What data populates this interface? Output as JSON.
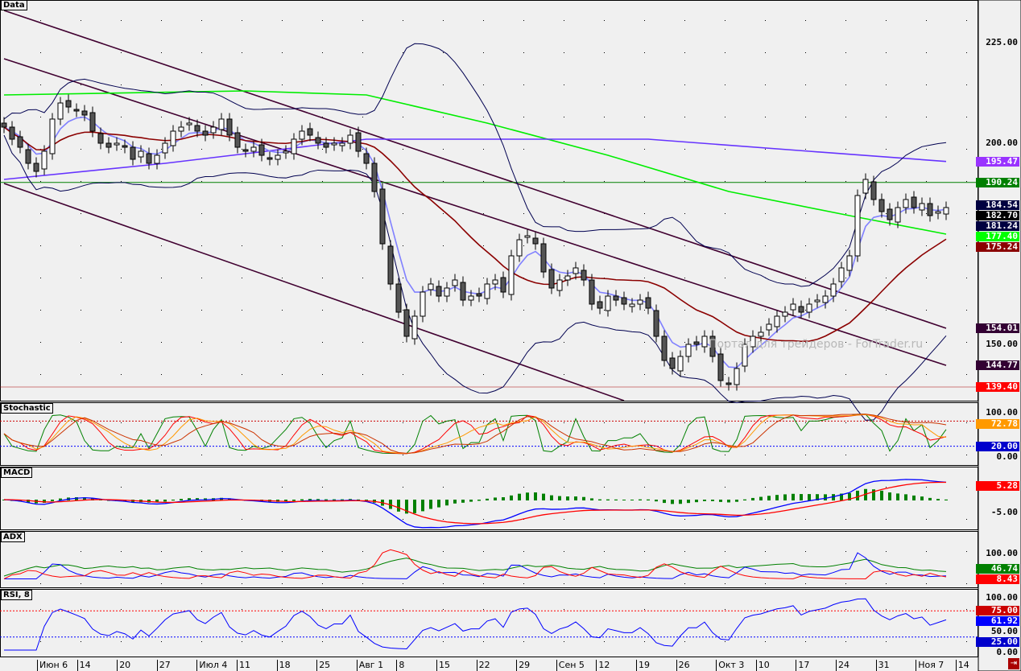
{
  "panels": {
    "main": "Data",
    "stoch": "Stochastic",
    "macd": "MACD",
    "adx": "ADX",
    "rsi": "RSI, 8"
  },
  "watermark": "Портал для трейдеров - ForTrader.ru",
  "chart_data": {
    "type": "candlestick",
    "x_ticks": [
      "Июн 6",
      "14",
      "20",
      "27",
      "Июл 4",
      "11",
      "18",
      "25",
      "Авг 1",
      "8",
      "15",
      "22",
      "29",
      "Сен 5",
      "12",
      "19",
      "26",
      "Окт 3",
      "10",
      "17",
      "24",
      "31",
      "Ноя 7",
      "14"
    ],
    "close": [
      204,
      201,
      199,
      195,
      193,
      198,
      206,
      210,
      209,
      208,
      207,
      203,
      200,
      199,
      200,
      199,
      196,
      198,
      195,
      197,
      200,
      203,
      204,
      205,
      203,
      202,
      204,
      206,
      202,
      199,
      198,
      199,
      197,
      196,
      197,
      198,
      201,
      203,
      202,
      200,
      199,
      200,
      200,
      202,
      198,
      195,
      188,
      175,
      165,
      158,
      152,
      157,
      163,
      165,
      162,
      164,
      166,
      161,
      162,
      162,
      165,
      166,
      163,
      172,
      176,
      177,
      175,
      168,
      164,
      166,
      167,
      169,
      166,
      160,
      159,
      162,
      161,
      160,
      160,
      161,
      159,
      152,
      146,
      144,
      147,
      150,
      150,
      152,
      147,
      141,
      140,
      144,
      150,
      152,
      153,
      155,
      157,
      158,
      160,
      158,
      160,
      161,
      162,
      165,
      169,
      172,
      187,
      191,
      186,
      183,
      181,
      184,
      186,
      184,
      185,
      182,
      183,
      184
    ],
    "sma200_green": [
      [
        0,
        212
      ],
      [
        30,
        213
      ],
      [
        45,
        212
      ],
      [
        60,
        205
      ],
      [
        75,
        197
      ],
      [
        90,
        188
      ],
      [
        105,
        182
      ],
      [
        117,
        177.4
      ]
    ],
    "ma_purple": [
      [
        0,
        191
      ],
      [
        20,
        195
      ],
      [
        45,
        201
      ],
      [
        60,
        201
      ],
      [
        80,
        201
      ],
      [
        100,
        198
      ],
      [
        117,
        195.47
      ]
    ],
    "channel_upper": [
      [
        0,
        233
      ],
      [
        117,
        154.01
      ]
    ],
    "channel_lower": [
      [
        0,
        221
      ],
      [
        117,
        144.77
      ]
    ],
    "channel_bottom": [
      [
        0,
        190
      ],
      [
        77,
        136
      ]
    ],
    "horizontal_green": 190.24,
    "horizontal_red": 139.4,
    "main_yticks": [
      225,
      200,
      150
    ],
    "main_labels": [
      {
        "v": "195.47",
        "c": "#9933ff"
      },
      {
        "v": "190.24",
        "c": "#008000"
      },
      {
        "v": "184.54",
        "c": "#000040"
      },
      {
        "v": "182.70",
        "c": "#000000"
      },
      {
        "v": "181.24",
        "c": "#000040"
      },
      {
        "v": "177.40",
        "c": "#00ff00"
      },
      {
        "v": "175.24",
        "c": "#8b0000"
      },
      {
        "v": "154.01",
        "c": "#330033"
      },
      {
        "v": "144.77",
        "c": "#330033"
      },
      {
        "v": "139.40",
        "c": "#ff0000"
      }
    ],
    "stoch_yticks": [
      100,
      0
    ],
    "stoch_levels": [
      80,
      20
    ],
    "stoch_labels": [
      {
        "v": "72.78",
        "c": "#ff9900"
      },
      {
        "v": "20.00",
        "c": "#0000cc"
      }
    ],
    "macd_yticks": [
      -5
    ],
    "macd_labels": [
      {
        "v": "5.28",
        "c": "#ff0000"
      }
    ],
    "adx_yticks": [
      100
    ],
    "adx_labels": [
      {
        "v": "46.74",
        "c": "#008000"
      },
      {
        "v": "8.43",
        "c": "#ff0000"
      }
    ],
    "rsi_yticks": [
      100,
      50,
      0
    ],
    "rsi_levels": [
      75,
      25
    ],
    "rsi_labels": [
      {
        "v": "75.00",
        "c": "#cc0000"
      },
      {
        "v": "61.92",
        "c": "#0000ff"
      },
      {
        "v": "25.00",
        "c": "#0000cc"
      }
    ],
    "colors": {
      "up": "#ffffff",
      "down": "#555555",
      "sma20": "#8b0000",
      "ema": "#8080ff",
      "bands": "#000050",
      "green": "#00ee00",
      "purple": "#6633ff",
      "channel": "#400030"
    }
  }
}
